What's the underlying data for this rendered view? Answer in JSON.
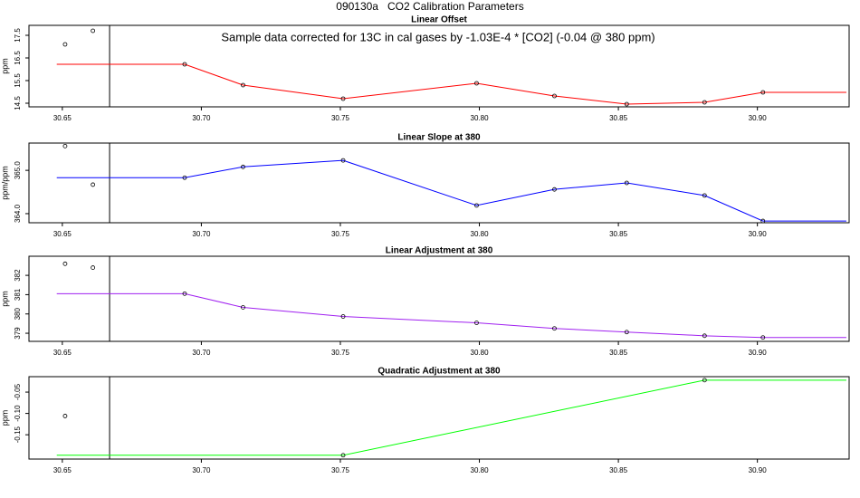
{
  "title": "090130a   CO2 Calibration Parameters",
  "chart_data": [
    {
      "type": "line",
      "title": "Linear Offset",
      "ylabel": "ppm",
      "annotation": "Sample data corrected for 13C in cal gases by -1.03E-4 * [CO2] (-0.04 @ 380 ppm)",
      "xlim": [
        30.638,
        30.933
      ],
      "ylim": [
        14.34,
        17.94
      ],
      "xticks": [
        30.65,
        {
          "value": 30.7,
          "label": "30.70"
        },
        30.75,
        {
          "value": 30.8,
          "label": "30.80"
        },
        30.85,
        {
          "value": 30.9,
          "label": "30.90"
        }
      ],
      "yticks": [
        14.5,
        15.5,
        16.5,
        17.5
      ],
      "vline": 30.667,
      "series": [
        {
          "color": "#ff0000",
          "x": [
            30.648,
            30.694,
            30.715,
            30.751,
            30.799,
            30.827,
            30.853,
            30.881,
            30.902,
            30.932
          ],
          "values": [
            16.22,
            16.22,
            15.3,
            14.7,
            15.38,
            14.82,
            14.46,
            14.54,
            14.98,
            14.98
          ]
        }
      ],
      "points": {
        "x": [
          30.651,
          30.661,
          30.694,
          30.715,
          30.751,
          30.799,
          30.827,
          30.853,
          30.881,
          30.902
        ],
        "values": [
          17.1,
          17.7,
          16.22,
          15.3,
          14.7,
          15.38,
          14.82,
          14.46,
          14.54,
          14.98
        ]
      }
    },
    {
      "type": "line",
      "title": "Linear Slope at 380",
      "ylabel": "ppm/ppm",
      "xlim": [
        30.638,
        30.933
      ],
      "ylim": [
        363.79,
        365.63
      ],
      "xticks": [
        30.65,
        {
          "value": 30.7,
          "label": "30.70"
        },
        30.75,
        {
          "value": 30.8,
          "label": "30.80"
        },
        30.85,
        {
          "value": 30.9,
          "label": "30.90"
        }
      ],
      "yticks": [
        {
          "value": 364,
          "label": "364.0"
        },
        {
          "value": 365,
          "label": "365.0"
        }
      ],
      "vline": 30.667,
      "series": [
        {
          "color": "#0000ff",
          "x": [
            30.648,
            30.694,
            30.715,
            30.751,
            30.799,
            30.827,
            30.853,
            30.881,
            30.902,
            30.932
          ],
          "values": [
            364.83,
            364.83,
            365.08,
            365.23,
            364.19,
            364.56,
            364.71,
            364.42,
            363.83,
            363.83
          ]
        }
      ],
      "points": {
        "x": [
          30.651,
          30.661,
          30.694,
          30.715,
          30.751,
          30.799,
          30.827,
          30.853,
          30.881,
          30.902
        ],
        "values": [
          365.56,
          364.67,
          364.83,
          365.08,
          365.23,
          364.19,
          364.56,
          364.71,
          364.42,
          363.83
        ]
      }
    },
    {
      "type": "line",
      "title": "Linear Adjustment at 380",
      "ylabel": "ppm",
      "xlim": [
        30.638,
        30.933
      ],
      "ylim": [
        378.58,
        382.99
      ],
      "xticks": [
        30.65,
        {
          "value": 30.7,
          "label": "30.70"
        },
        30.75,
        {
          "value": 30.8,
          "label": "30.80"
        },
        30.85,
        {
          "value": 30.9,
          "label": "30.90"
        }
      ],
      "yticks": [
        379,
        380,
        381,
        382
      ],
      "vline": 30.667,
      "series": [
        {
          "color": "#a020f0",
          "x": [
            30.648,
            30.694,
            30.715,
            30.751,
            30.799,
            30.827,
            30.853,
            30.881,
            30.902,
            30.932
          ],
          "values": [
            381.05,
            381.05,
            380.34,
            379.87,
            379.54,
            379.25,
            379.06,
            378.87,
            378.78,
            378.78
          ]
        }
      ],
      "points": {
        "x": [
          30.651,
          30.661,
          30.694,
          30.715,
          30.751,
          30.799,
          30.827,
          30.853,
          30.881,
          30.902
        ],
        "values": [
          382.6,
          382.4,
          381.05,
          380.34,
          379.87,
          379.54,
          379.25,
          379.06,
          378.87,
          378.78
        ]
      }
    },
    {
      "type": "line",
      "title": "Quadratic Adjustment at 380",
      "ylabel": "ppm",
      "xlim": [
        30.638,
        30.933
      ],
      "ylim": [
        -0.207,
        -0.0138
      ],
      "xticks": [
        30.65,
        {
          "value": 30.7,
          "label": "30.70"
        },
        30.75,
        {
          "value": 30.8,
          "label": "30.80"
        },
        30.85,
        {
          "value": 30.9,
          "label": "30.90"
        }
      ],
      "yticks": [
        -0.15,
        {
          "value": -0.1,
          "label": "-0.10"
        },
        -0.05
      ],
      "vline": 30.667,
      "series": [
        {
          "color": "#00ff00",
          "x": [
            30.648,
            30.751,
            30.881,
            30.932
          ],
          "values": [
            -0.198,
            -0.198,
            -0.022,
            -0.022
          ]
        }
      ],
      "points": {
        "x": [
          30.651,
          30.751,
          30.881
        ],
        "values": [
          -0.106,
          -0.198,
          -0.022
        ]
      }
    }
  ]
}
